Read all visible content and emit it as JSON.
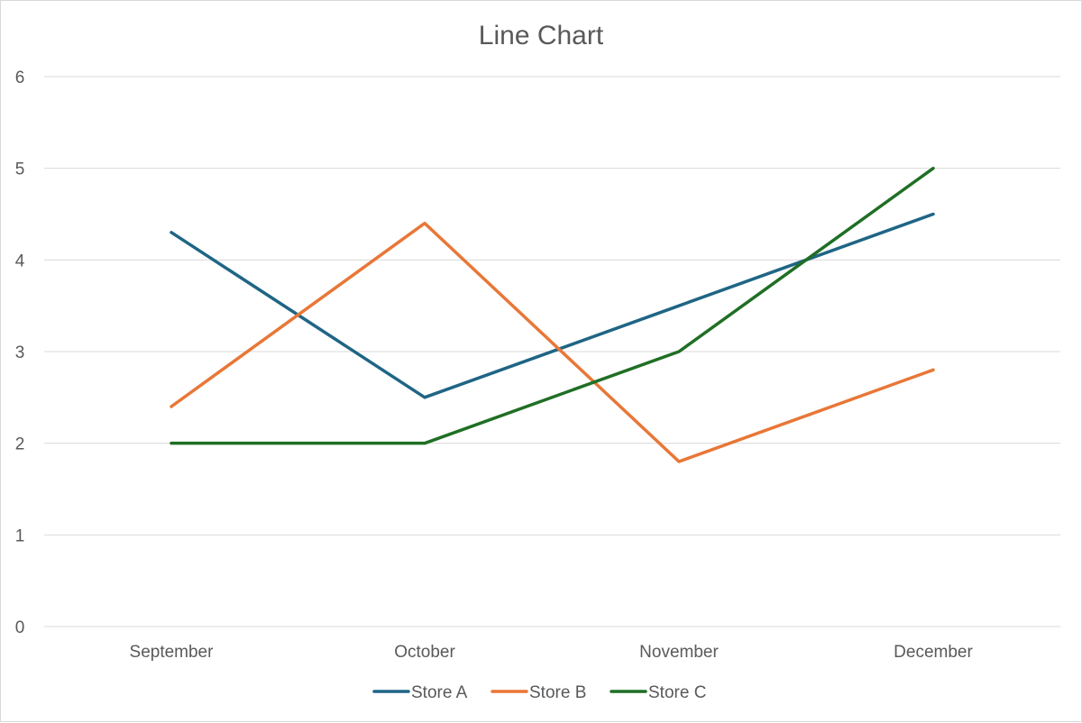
{
  "chart_data": {
    "type": "line",
    "title": "Line Chart",
    "xlabel": "",
    "ylabel": "",
    "categories": [
      "September",
      "October",
      "November",
      "December"
    ],
    "ylim": [
      0,
      6
    ],
    "yticks": [
      "0",
      "1",
      "2",
      "3",
      "4",
      "5",
      "6"
    ],
    "grid": true,
    "legend_position": "bottom",
    "series": [
      {
        "name": "Store A",
        "color": "#1f6585",
        "values": [
          4.3,
          2.5,
          3.5,
          4.5
        ]
      },
      {
        "name": "Store B",
        "color": "#e87737",
        "values": [
          2.4,
          4.4,
          1.8,
          2.8
        ]
      },
      {
        "name": "Store C",
        "color": "#1f6f24",
        "values": [
          2.0,
          2.0,
          3.0,
          5.0
        ]
      }
    ]
  }
}
